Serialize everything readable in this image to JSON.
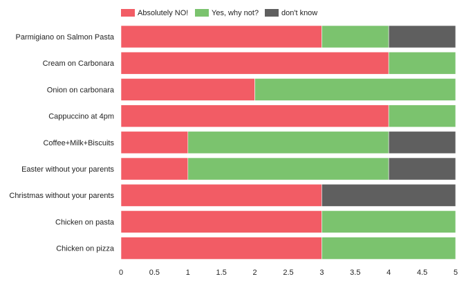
{
  "chart_data": {
    "type": "bar",
    "orientation": "horizontal",
    "stacked": true,
    "title": "",
    "xlabel": "",
    "ylabel": "",
    "xlim": [
      0,
      5
    ],
    "x_ticks": [
      "0",
      "0.5",
      "1",
      "1.5",
      "2",
      "2.5",
      "3",
      "3.5",
      "4",
      "4.5",
      "5"
    ],
    "grid": false,
    "legend_position": "top",
    "categories": [
      "Parmigiano on Salmon Pasta",
      "Cream on Carbonara",
      "Onion on carbonara",
      "Cappuccino at 4pm",
      "Coffee+Milk+Biscuits",
      "Easter without your parents",
      "Christmas without your parents",
      "Chicken on pasta",
      "Chicken on pizza"
    ],
    "series": [
      {
        "name": "Absolutely NO!",
        "color": "#f25c65",
        "values": [
          3,
          4,
          2,
          4,
          1,
          1,
          3,
          3,
          3
        ]
      },
      {
        "name": "Yes, why not?",
        "color": "#7bc36e",
        "values": [
          1,
          1,
          3,
          1,
          3,
          3,
          0,
          2,
          2
        ]
      },
      {
        "name": "don't know",
        "color": "#5f5f5f",
        "values": [
          1,
          0,
          0,
          0,
          1,
          1,
          2,
          0,
          0
        ]
      }
    ]
  }
}
